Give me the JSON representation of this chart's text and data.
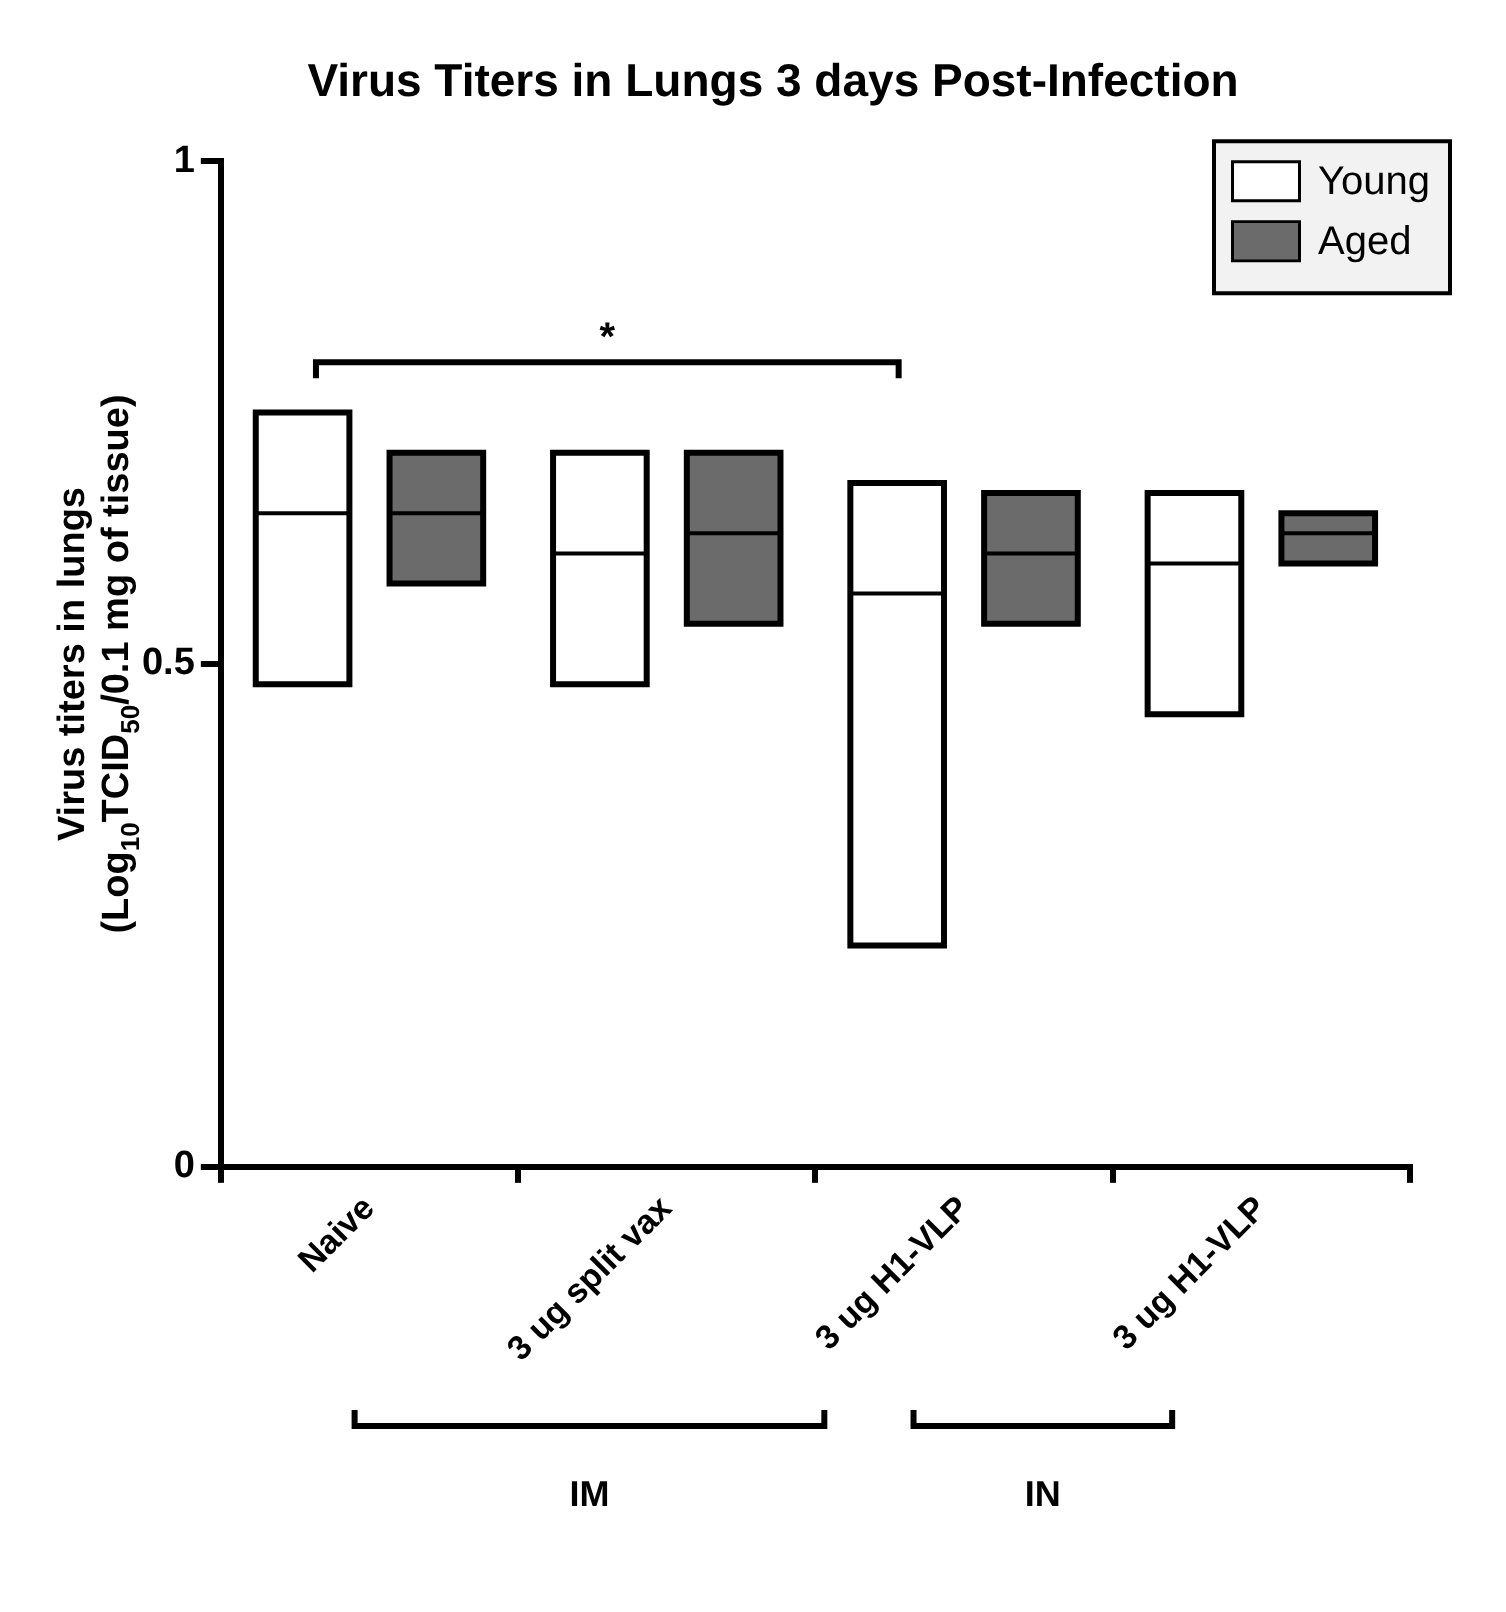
{
  "chart_data": {
    "type": "box",
    "title": "Virus Titers in Lungs 3 days Post-Infection",
    "ylabel": "Virus titers in lungs\n(Log$_{10}$TCID$_{50}$/0.1 mg of tissue)",
    "categories": [
      "Naive",
      "3 ug split vax",
      "3 ug H1-VLP",
      "3 ug H1-VLP"
    ],
    "series": [
      {
        "name": "Young",
        "color": "#ffffff",
        "boxes": [
          {
            "low": 0.48,
            "q1": 0.48,
            "median": 0.65,
            "q3": 0.75,
            "high": 0.75
          },
          {
            "low": 0.48,
            "q1": 0.48,
            "median": 0.61,
            "q3": 0.71,
            "high": 0.71
          },
          {
            "low": 0.22,
            "q1": 0.22,
            "median": 0.57,
            "q3": 0.68,
            "high": 0.68
          },
          {
            "low": 0.45,
            "q1": 0.45,
            "median": 0.6,
            "q3": 0.67,
            "high": 0.67
          }
        ]
      },
      {
        "name": "Aged",
        "color": "#6b6b6b",
        "boxes": [
          {
            "low": 0.58,
            "q1": 0.58,
            "median": 0.65,
            "q3": 0.71,
            "high": 0.71
          },
          {
            "low": 0.54,
            "q1": 0.54,
            "median": 0.63,
            "q3": 0.71,
            "high": 0.71
          },
          {
            "low": 0.54,
            "q1": 0.54,
            "median": 0.61,
            "q3": 0.67,
            "high": 0.67
          },
          {
            "low": 0.6,
            "q1": 0.6,
            "median": 0.63,
            "q3": 0.65,
            "high": 0.65
          }
        ]
      }
    ],
    "ylim": [
      0,
      1
    ],
    "yticks": [
      0,
      0.5,
      1
    ],
    "grid": false,
    "legend": "top right",
    "annotations": [
      "*",
      "IM",
      "IN"
    ]
  }
}
